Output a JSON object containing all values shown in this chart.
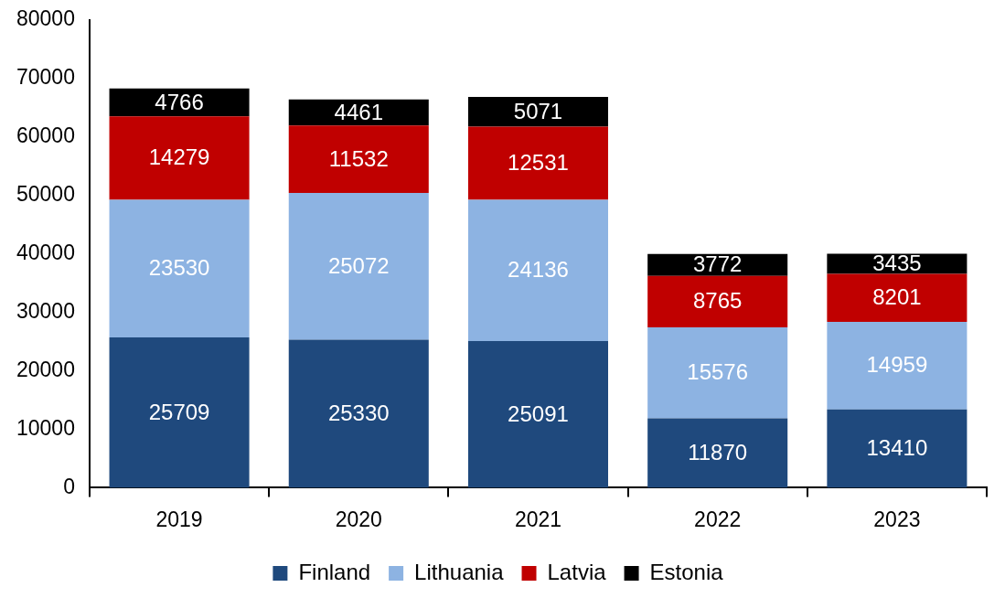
{
  "chart_data": {
    "type": "bar",
    "stacked": true,
    "categories": [
      "2019",
      "2020",
      "2021",
      "2022",
      "2023"
    ],
    "series": [
      {
        "name": "Finland",
        "color": "#1f497d",
        "values": [
          25709,
          25330,
          25091,
          11870,
          13410
        ]
      },
      {
        "name": "Lithuania",
        "color": "#8db3e2",
        "values": [
          23530,
          25072,
          24136,
          15576,
          14959
        ]
      },
      {
        "name": "Latvia",
        "color": "#c00000",
        "values": [
          14279,
          11532,
          12531,
          8765,
          8201
        ]
      },
      {
        "name": "Estonia",
        "color": "#000000",
        "values": [
          4766,
          4461,
          5071,
          3772,
          3435
        ]
      }
    ],
    "ylim": [
      0,
      80000
    ],
    "yticks": [
      0,
      10000,
      20000,
      30000,
      40000,
      50000,
      60000,
      70000,
      80000
    ],
    "grid": false,
    "legend": "bottom",
    "data_labels": true
  }
}
